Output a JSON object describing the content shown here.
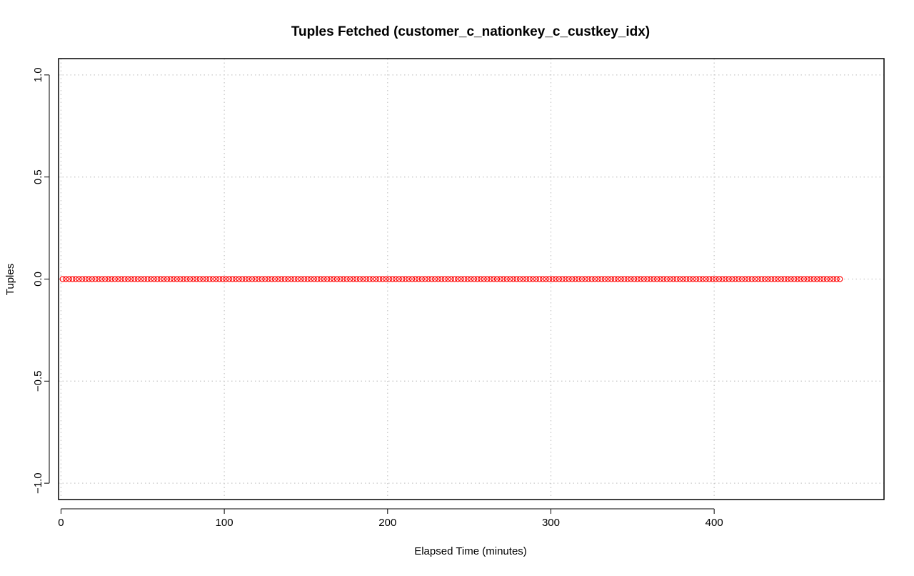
{
  "chart_data": {
    "type": "scatter",
    "title": "Tuples Fetched (customer_c_nationkey_c_custkey_idx)",
    "xlabel": "Elapsed Time (minutes)",
    "ylabel": "Tuples",
    "xlim": [
      -1.5,
      504
    ],
    "ylim": [
      -1.08,
      1.08
    ],
    "x_ticks": [
      0,
      100,
      200,
      300,
      400
    ],
    "x_tick_labels": [
      "0",
      "100",
      "200",
      "300",
      "400"
    ],
    "y_ticks": [
      -1.0,
      -0.5,
      0.0,
      0.5,
      1.0
    ],
    "y_tick_labels": [
      "−1.0",
      "−0.5",
      "0.0",
      "0.5",
      "1.0"
    ],
    "grid": true,
    "series": [
      {
        "color": "#ff0000",
        "marker": "open-circle",
        "x_start": 1,
        "x_end": 477,
        "x_step": 2,
        "y_constant": 0
      }
    ]
  }
}
